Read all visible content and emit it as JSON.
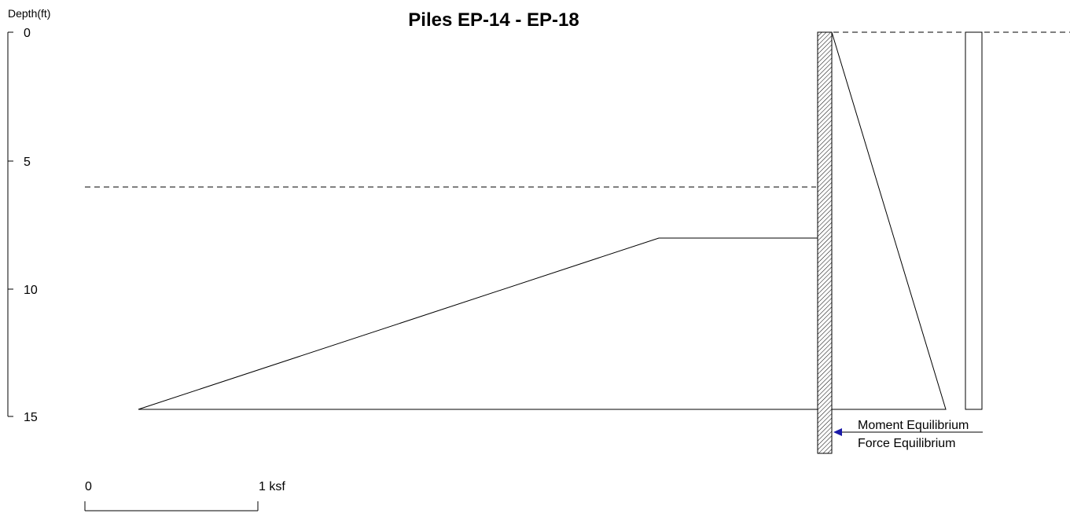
{
  "title": "Piles EP-14 - EP-18",
  "depth_axis": {
    "label": "Depth(ft)",
    "ticks": [
      "0",
      "5",
      "10",
      "15"
    ]
  },
  "scale_bar": {
    "start_label": "0",
    "end_label": "1 ksf"
  },
  "legend": {
    "moment": "Moment Equilibrium",
    "force": "Force Equilibrium"
  },
  "colors": {
    "lines": "#000000",
    "arrow": "#1a1aa8"
  }
}
